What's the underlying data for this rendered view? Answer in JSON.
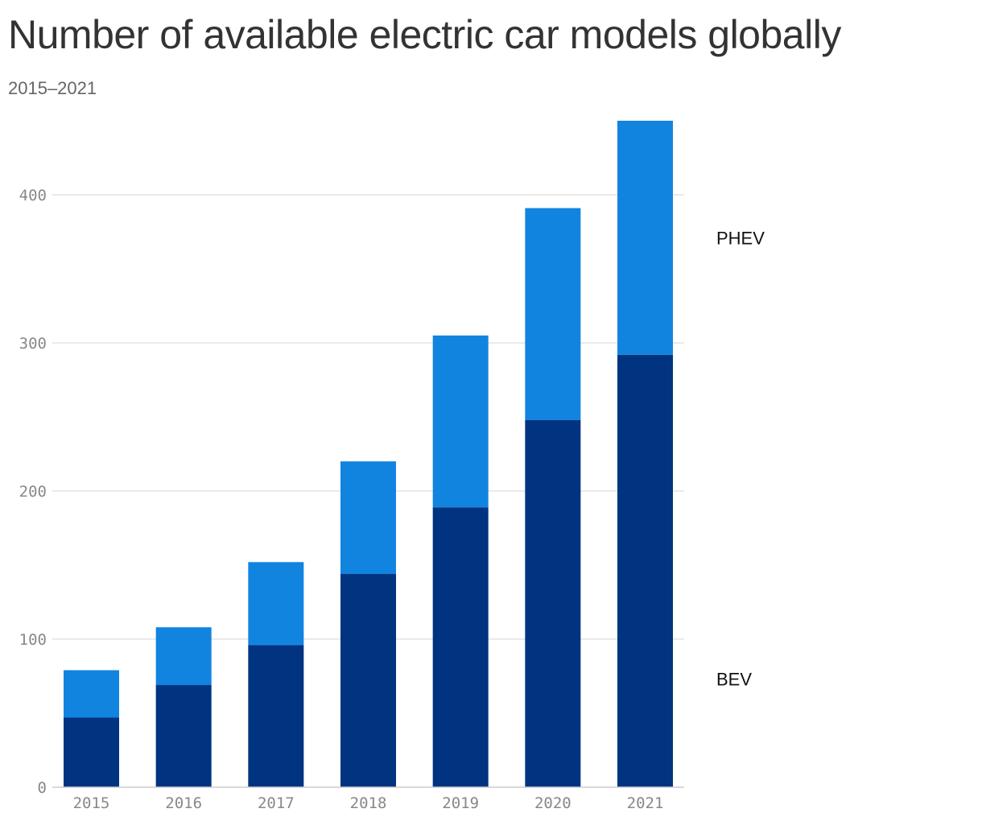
{
  "header": {
    "title": "Number of available electric car models globally",
    "subtitle": "2015–2021"
  },
  "colors": {
    "bev": "#003380",
    "phev": "#1184e0",
    "grid": "#e3e3e3",
    "axis": "#cccccc"
  },
  "chart_data": {
    "type": "bar",
    "stacked": true,
    "categories": [
      "2015",
      "2016",
      "2017",
      "2018",
      "2019",
      "2020",
      "2021"
    ],
    "series": [
      {
        "name": "BEV",
        "values": [
          47,
          69,
          96,
          144,
          189,
          248,
          292
        ]
      },
      {
        "name": "PHEV",
        "values": [
          32,
          39,
          56,
          76,
          116,
          143,
          158
        ]
      }
    ],
    "yticks": [
      0,
      100,
      200,
      300,
      400
    ],
    "ylim": [
      0,
      450
    ],
    "grid": true,
    "legend": "right, inline labels",
    "title": "Number of available electric car models globally",
    "subtitle": "2015–2021"
  }
}
